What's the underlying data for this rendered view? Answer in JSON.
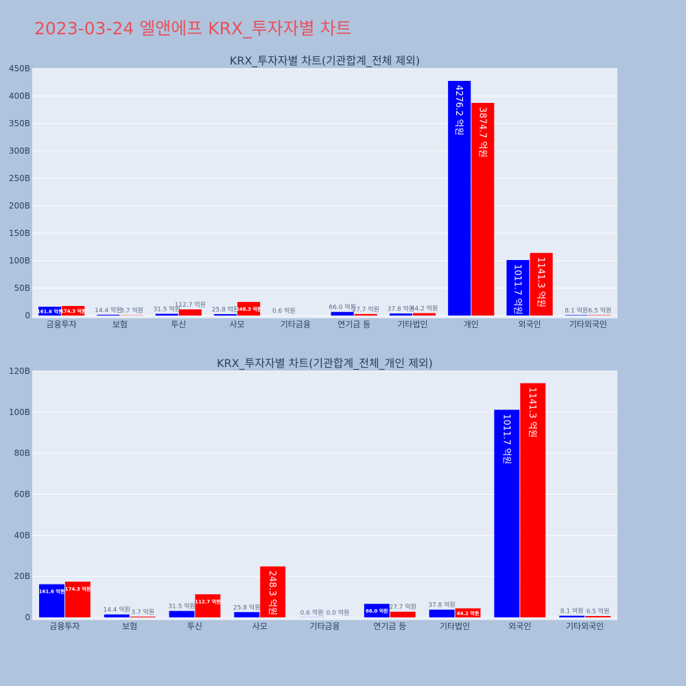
{
  "title": "2023-03-24 엘앤에프 KRX_투자자별 차트",
  "colors": {
    "buy": "#0000ff",
    "sell": "#ff0000",
    "plot_bg": "#e5ecf6",
    "page_bg": "#b0c4de",
    "title": "#e8515a"
  },
  "chart_data": [
    {
      "type": "bar",
      "title": "KRX_투자자별 차트(기관합계_전체 제외)",
      "categories": [
        "금융투자",
        "보험",
        "투신",
        "사모",
        "기타금융",
        "연기금 등",
        "기타법인",
        "개인",
        "외국인",
        "기타외국인"
      ],
      "ylim": [
        0,
        450
      ],
      "yticks": [
        0,
        50,
        100,
        150,
        200,
        250,
        300,
        350,
        400,
        450
      ],
      "ytick_labels": [
        "0",
        "50B",
        "100B",
        "150B",
        "200B",
        "250B",
        "300B",
        "350B",
        "400B",
        "450B"
      ],
      "grid": true,
      "series": [
        {
          "values": [
            16.16,
            1.44,
            3.15,
            2.58,
            0.06,
            6.6,
            3.78,
            427.62,
            101.17,
            0.81
          ],
          "labels": [
            "161.6 억원",
            "14.4 억원",
            "31.5 억원",
            "25.8 억원",
            "0.6 억원",
            "66.0 억원",
            "37.8 억원",
            "4276.2 억원",
            "1011.7 억원",
            "8.1 억원"
          ]
        },
        {
          "values": [
            17.43,
            0.37,
            11.27,
            24.83,
            null,
            2.77,
            4.42,
            387.47,
            114.13,
            0.65
          ],
          "labels": [
            "174.3 억원",
            "3.7 억원",
            "112.7 억원",
            "248.3 억원",
            "",
            "27.7 억원",
            "44.2 억원",
            "3874.7 억원",
            "1141.3 억원",
            "6.5 억원"
          ]
        }
      ]
    },
    {
      "type": "bar",
      "title": "KRX_투자자별 차트(기관합계_전체_개인 제외)",
      "categories": [
        "금융투자",
        "보험",
        "투신",
        "사모",
        "기타금융",
        "연기금 등",
        "기타법인",
        "외국인",
        "기타외국인"
      ],
      "ylim": [
        0,
        120
      ],
      "yticks": [
        0,
        20,
        40,
        60,
        80,
        100,
        120
      ],
      "ytick_labels": [
        "0",
        "20B",
        "40B",
        "60B",
        "80B",
        "100B",
        "120B"
      ],
      "grid": true,
      "series": [
        {
          "values": [
            16.16,
            1.44,
            3.15,
            2.58,
            0.06,
            6.6,
            3.78,
            101.17,
            0.81
          ],
          "labels": [
            "161.6 억원",
            "14.4 억원",
            "31.5 억원",
            "25.8 억원",
            "0.6 억원",
            "66.0 억원",
            "37.8 억원",
            "1011.7 억원",
            "8.1 억원"
          ]
        },
        {
          "values": [
            17.43,
            0.37,
            11.27,
            24.83,
            0.0,
            2.77,
            4.42,
            114.13,
            0.65
          ],
          "labels": [
            "174.3 억원",
            "3.7 억원",
            "112.7 억원",
            "248.3 억원",
            "0.0 억원",
            "27.7 억원",
            "44.2 억원",
            "1141.3 억원",
            "6.5 억원"
          ]
        }
      ]
    }
  ]
}
